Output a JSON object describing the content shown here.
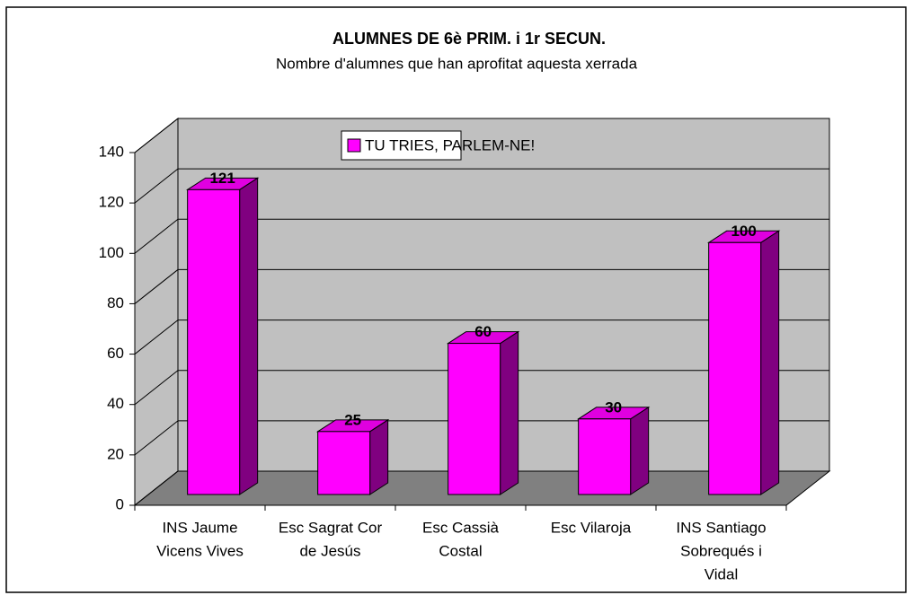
{
  "chart_data": {
    "type": "bar3d",
    "title": "ALUMNES DE 6è PRIM. i 1r SECUN.",
    "subtitle": "Nombre d'alumnes que han aprofitat aquesta xerrada",
    "categories": [
      [
        "INS Jaume",
        "Vicens Vives"
      ],
      [
        "Esc Sagrat Cor",
        "de Jesús"
      ],
      [
        "Esc Cassià",
        "Costal"
      ],
      [
        "Esc Vilaroja"
      ],
      [
        "INS Santiago",
        "Sobrequés i",
        "Vidal"
      ]
    ],
    "series": [
      {
        "name": "TU TRIES, PARLEM-NE!",
        "color": "#ff00ff",
        "values": [
          121,
          25,
          60,
          30,
          100
        ]
      }
    ],
    "ylim": [
      0,
      140
    ],
    "yticks": [
      0,
      20,
      40,
      60,
      80,
      100,
      120,
      140
    ],
    "grid": true
  }
}
